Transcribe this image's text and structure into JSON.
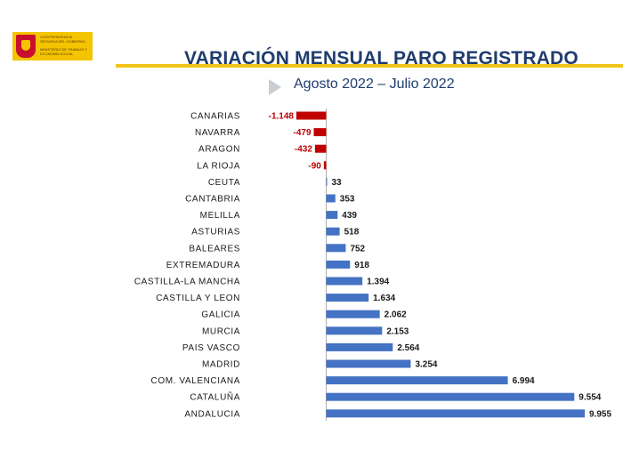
{
  "header": {
    "logo_lines": [
      "Vicepresidencia",
      "Segunda del Gobierno",
      "Ministerio de Trabajo y Economía Social"
    ],
    "title": "VARIACIÓN MENSUAL PARO REGISTRADO",
    "subtitle": "Agosto 2022 – Julio 2022"
  },
  "colors": {
    "positive": "#4472c4",
    "negative": "#c00000",
    "title": "#1f3c6e",
    "accent": "#f0c419"
  },
  "chart_data": {
    "type": "bar",
    "orientation": "horizontal",
    "title": "VARIACIÓN MENSUAL PARO REGISTRADO",
    "subtitle": "Agosto 2022 – Julio 2022",
    "xlabel": "",
    "ylabel": "",
    "xlim": [
      -1200,
      10000
    ],
    "grid": false,
    "legend": "none",
    "categories": [
      "CANARIAS",
      "NAVARRA",
      "ARAGON",
      "LA RIOJA",
      "CEUTA",
      "CANTABRIA",
      "MELILLA",
      "ASTURIAS",
      "BALEARES",
      "EXTREMADURA",
      "CASTILLA-LA MANCHA",
      "CASTILLA Y LEON",
      "GALICIA",
      "MURCIA",
      "PAIS VASCO",
      "MADRID",
      "COM. VALENCIANA",
      "CATALUÑA",
      "ANDALUCIA"
    ],
    "values": [
      -1148,
      -479,
      -432,
      -90,
      33,
      353,
      439,
      518,
      752,
      918,
      1394,
      1634,
      2062,
      2153,
      2564,
      3254,
      6994,
      9554,
      9955
    ],
    "value_labels": [
      "-1.148",
      "-479",
      "-432",
      "-90",
      "33",
      "353",
      "439",
      "518",
      "752",
      "918",
      "1.394",
      "1.634",
      "2.062",
      "2.153",
      "2.564",
      "3.254",
      "6.994",
      "9.554",
      "9.955"
    ]
  }
}
